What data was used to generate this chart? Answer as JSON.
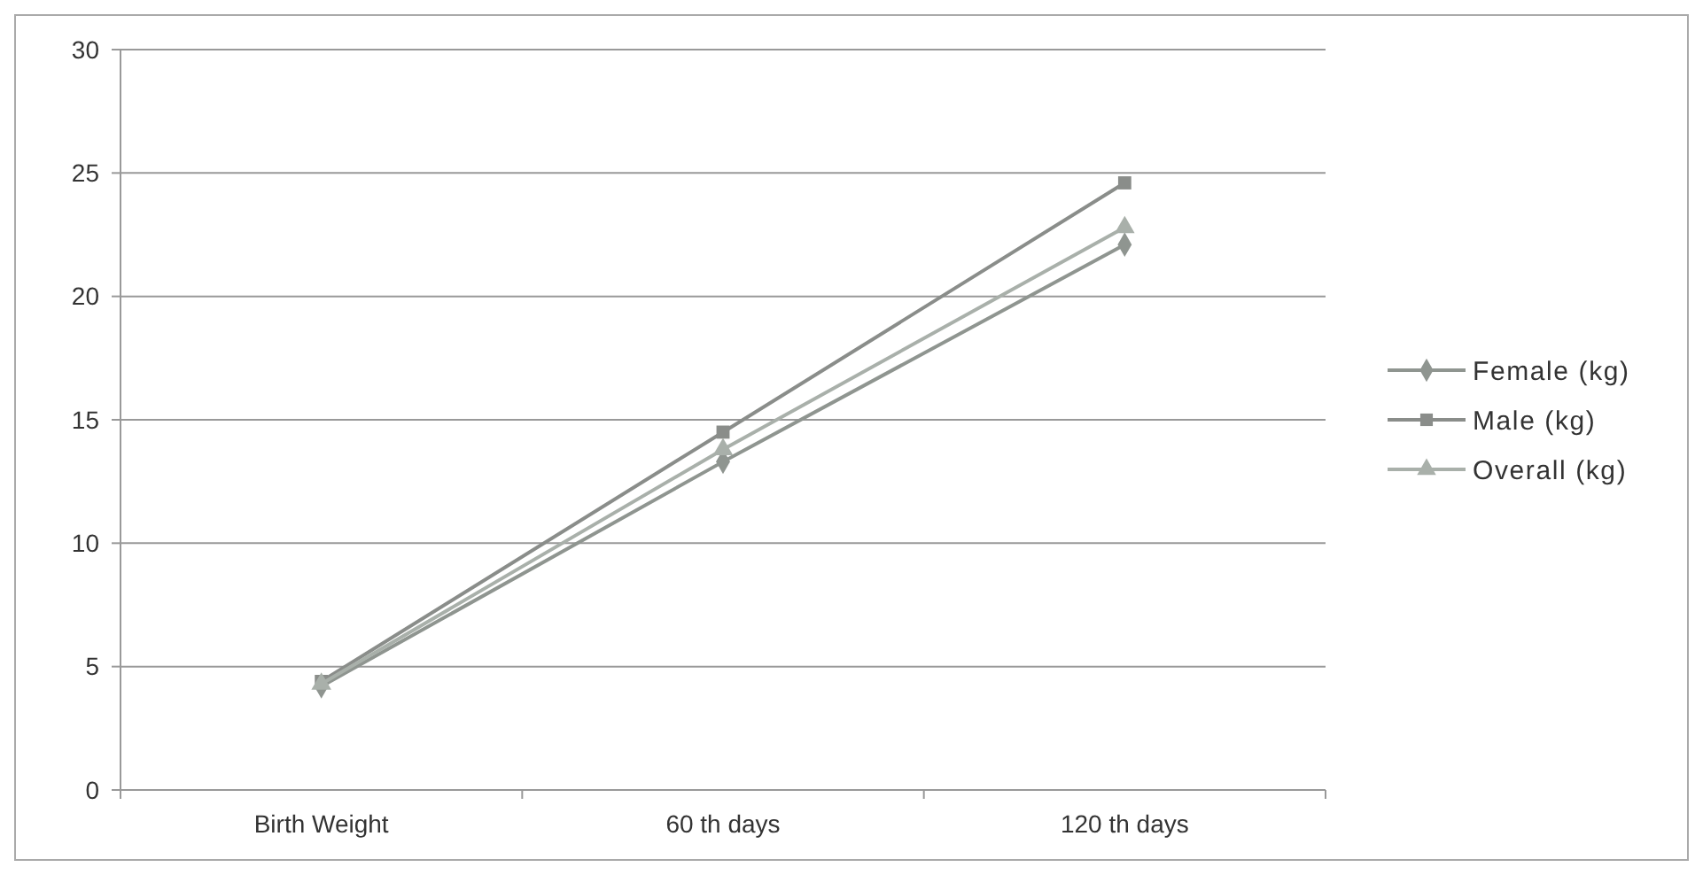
{
  "chart_data": {
    "type": "line",
    "categories": [
      "Birth Weight",
      "60 th days",
      "120 th days"
    ],
    "series": [
      {
        "name": "Female (kg)",
        "color": "#8f9590",
        "values": [
          4.2,
          13.3,
          22.1
        ],
        "marker": "diamond"
      },
      {
        "name": "Male (kg)",
        "color": "#8a8d8a",
        "values": [
          4.4,
          14.5,
          24.6
        ],
        "marker": "square"
      },
      {
        "name": "Overall (kg)",
        "color": "#a9b0aa",
        "values": [
          4.3,
          13.8,
          22.8
        ],
        "marker": "triangle"
      }
    ],
    "ylim": [
      0,
      30
    ],
    "yticks": [
      0,
      5,
      10,
      15,
      20,
      25,
      30
    ],
    "grid": "y",
    "legend": "right"
  }
}
